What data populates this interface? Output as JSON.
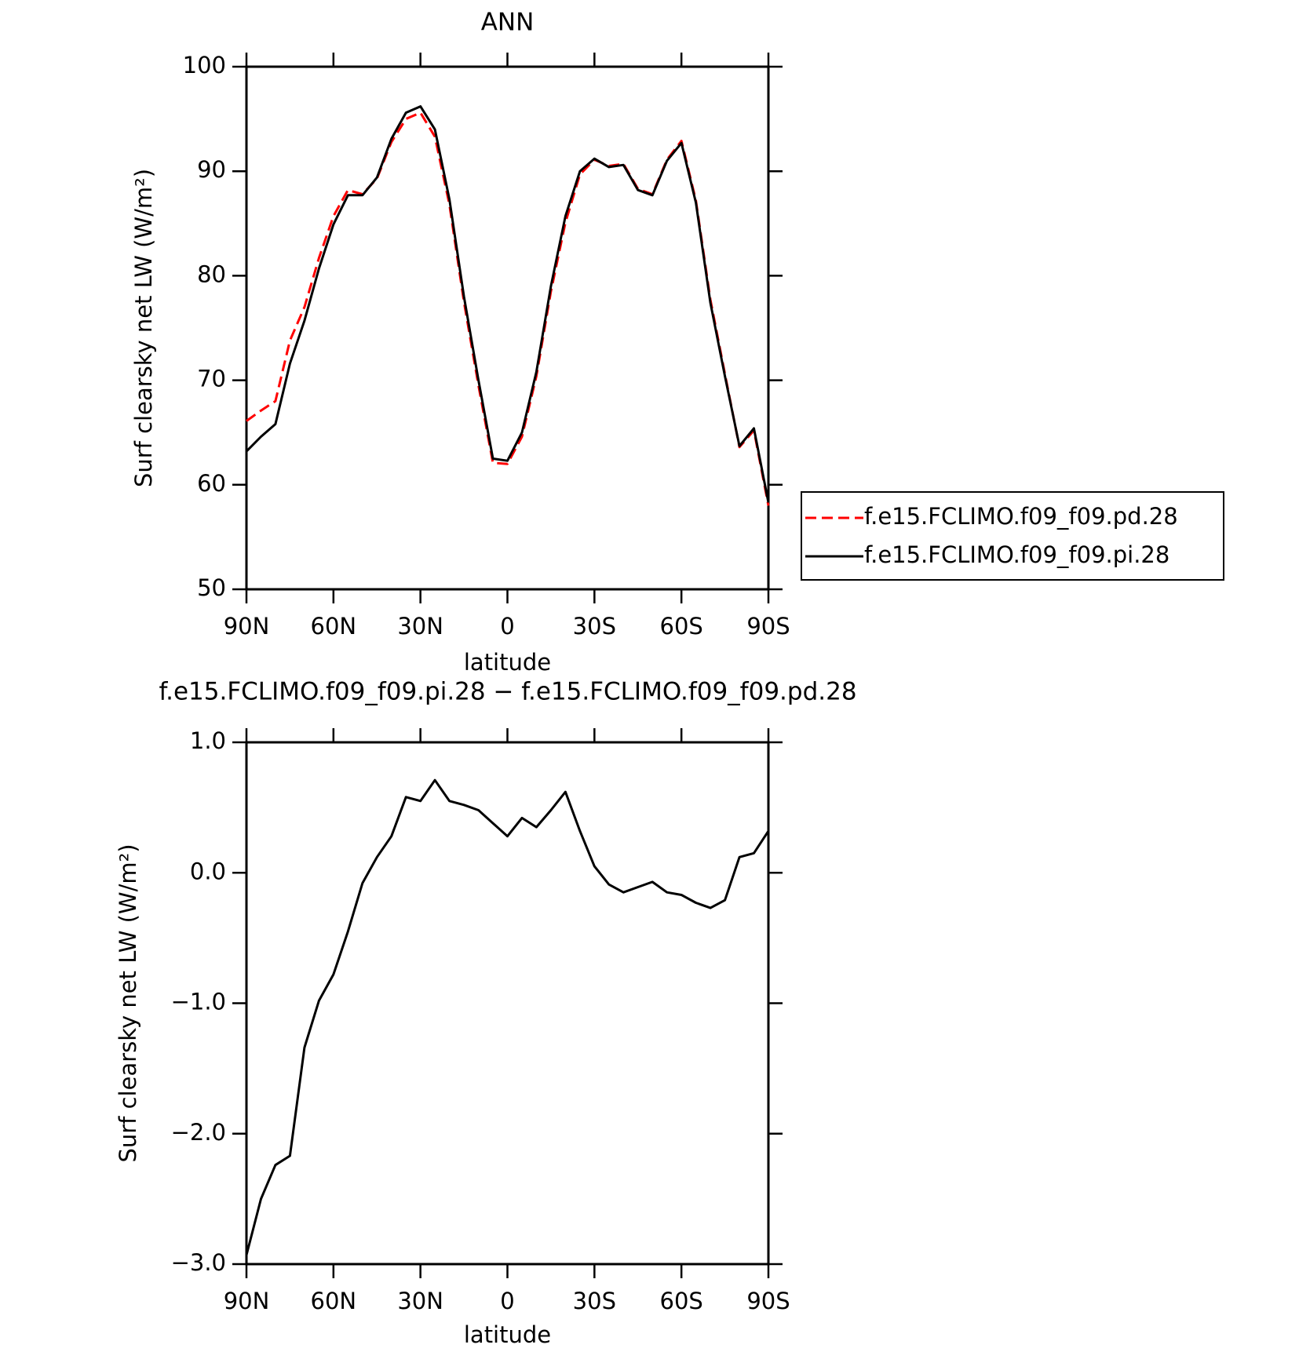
{
  "chart_data": [
    {
      "type": "line",
      "title": "ANN",
      "x_label": "latitude",
      "y_label": "Surf clearsky net LW (W/m²)",
      "x": [
        90,
        85,
        80,
        75,
        70,
        65,
        60,
        55,
        50,
        45,
        40,
        35,
        30,
        25,
        20,
        15,
        10,
        5,
        0,
        -5,
        -10,
        -15,
        -20,
        -25,
        -30,
        -35,
        -40,
        -45,
        -50,
        -55,
        -60,
        -65,
        -70,
        -75,
        -80,
        -85,
        -90
      ],
      "series": [
        {
          "name": "f.e15.FCLIMO.f09_f09.pd.28",
          "color": "#ff0000",
          "dashed": true,
          "values": [
            66.1,
            67.1,
            68.0,
            73.8,
            77.0,
            81.7,
            85.7,
            88.2,
            87.8,
            89.3,
            92.8,
            95.0,
            95.6,
            93.3,
            86.8,
            77.5,
            69.5,
            62.1,
            62.0,
            64.6,
            70.4,
            78.5,
            85.1,
            89.7,
            91.1,
            90.5,
            90.7,
            88.3,
            87.8,
            91.1,
            92.9,
            87.2,
            77.7,
            70.6,
            63.6,
            65.2,
            58.0
          ]
        },
        {
          "name": "f.e15.FCLIMO.f09_f09.pi.28",
          "color": "#000000",
          "dashed": false,
          "values": [
            63.2,
            64.6,
            65.8,
            71.6,
            75.7,
            80.7,
            84.9,
            87.7,
            87.7,
            89.4,
            93.1,
            95.6,
            96.2,
            94.0,
            87.3,
            78.0,
            70.0,
            62.5,
            62.3,
            65.0,
            70.8,
            79.0,
            85.7,
            90.0,
            91.2,
            90.4,
            90.6,
            88.2,
            87.7,
            91.0,
            92.7,
            87.0,
            77.4,
            70.4,
            63.7,
            65.4,
            58.3
          ]
        }
      ],
      "xlim": [
        90,
        -90
      ],
      "xticks": [
        {
          "value": 90,
          "label": "90N"
        },
        {
          "value": 60,
          "label": "60N"
        },
        {
          "value": 30,
          "label": "30N"
        },
        0,
        {
          "value": -30,
          "label": "30S"
        },
        {
          "value": -60,
          "label": "60S"
        },
        {
          "value": -90,
          "label": "90S"
        }
      ],
      "ylim": [
        50,
        100
      ],
      "yticks": [
        50,
        60,
        70,
        80,
        90,
        100
      ],
      "legend": "right"
    },
    {
      "type": "line",
      "title": "f.e15.FCLIMO.f09_f09.pi.28 − f.e15.FCLIMO.f09_f09.pd.28",
      "x_label": "latitude",
      "y_label": "Surf clearsky net LW (W/m²)",
      "x": [
        90,
        85,
        80,
        75,
        70,
        65,
        60,
        55,
        50,
        45,
        40,
        35,
        30,
        25,
        20,
        15,
        10,
        5,
        0,
        -5,
        -10,
        -15,
        -20,
        -25,
        -30,
        -35,
        -40,
        -45,
        -50,
        -55,
        -60,
        -65,
        -70,
        -75,
        -80,
        -85,
        -90
      ],
      "series": [
        {
          "color": "#000000",
          "dashed": false,
          "values": [
            -2.93,
            -2.5,
            -2.24,
            -2.17,
            -1.34,
            -0.98,
            -0.78,
            -0.45,
            -0.08,
            0.12,
            0.28,
            0.58,
            0.55,
            0.71,
            0.55,
            0.52,
            0.48,
            0.38,
            0.28,
            0.42,
            0.35,
            0.48,
            0.62,
            0.32,
            0.05,
            -0.09,
            -0.15,
            -0.11,
            -0.07,
            -0.15,
            -0.17,
            -0.23,
            -0.27,
            -0.21,
            0.12,
            0.15,
            0.32
          ]
        }
      ],
      "xlim": [
        90,
        -90
      ],
      "xticks": [
        {
          "value": 90,
          "label": "90N"
        },
        {
          "value": 60,
          "label": "60N"
        },
        {
          "value": 30,
          "label": "30N"
        },
        0,
        {
          "value": -30,
          "label": "30S"
        },
        {
          "value": -60,
          "label": "60S"
        },
        {
          "value": -90,
          "label": "90S"
        }
      ],
      "ylim": [
        -3,
        1
      ],
      "yticks": [
        {
          "value": -3,
          "label": "−3.0"
        },
        {
          "value": -2,
          "label": "−2.0"
        },
        {
          "value": -1,
          "label": "−1.0"
        },
        {
          "value": 0,
          "label": "0.0"
        },
        {
          "value": 1,
          "label": "1.0"
        }
      ]
    }
  ]
}
